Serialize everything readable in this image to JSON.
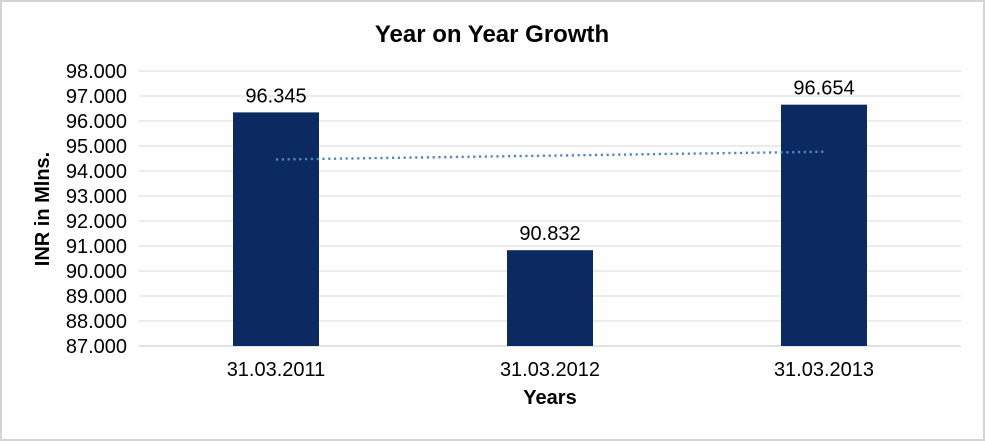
{
  "chart_data": {
    "type": "bar",
    "title": "Year on Year Growth",
    "xlabel": "Years",
    "ylabel": "INR in Mlns.",
    "categories": [
      "31.03.2011",
      "31.03.2012",
      "31.03.2013"
    ],
    "values": [
      96.345,
      90.832,
      96.654
    ],
    "data_labels": [
      "96.345",
      "90.832",
      "96.654"
    ],
    "ylim": [
      87,
      98
    ],
    "y_tick_step": 1,
    "y_tick_labels": [
      "87.000",
      "88.000",
      "89.000",
      "90.000",
      "91.000",
      "92.000",
      "93.000",
      "94.000",
      "95.000",
      "96.000",
      "97.000",
      "98.000"
    ],
    "grid": true,
    "legend": "none",
    "trendline": {
      "type": "linear",
      "style": "dotted",
      "start_value": 94.46,
      "end_value": 94.77
    },
    "colors": {
      "bar": "#0a2a61",
      "trendline": "#4e86c8",
      "gridline": "#d9d9d9",
      "axis_line": "#c6c6c6",
      "text": "#000000",
      "frame_border": "#d4d4d4",
      "background": "#ffffff"
    }
  }
}
